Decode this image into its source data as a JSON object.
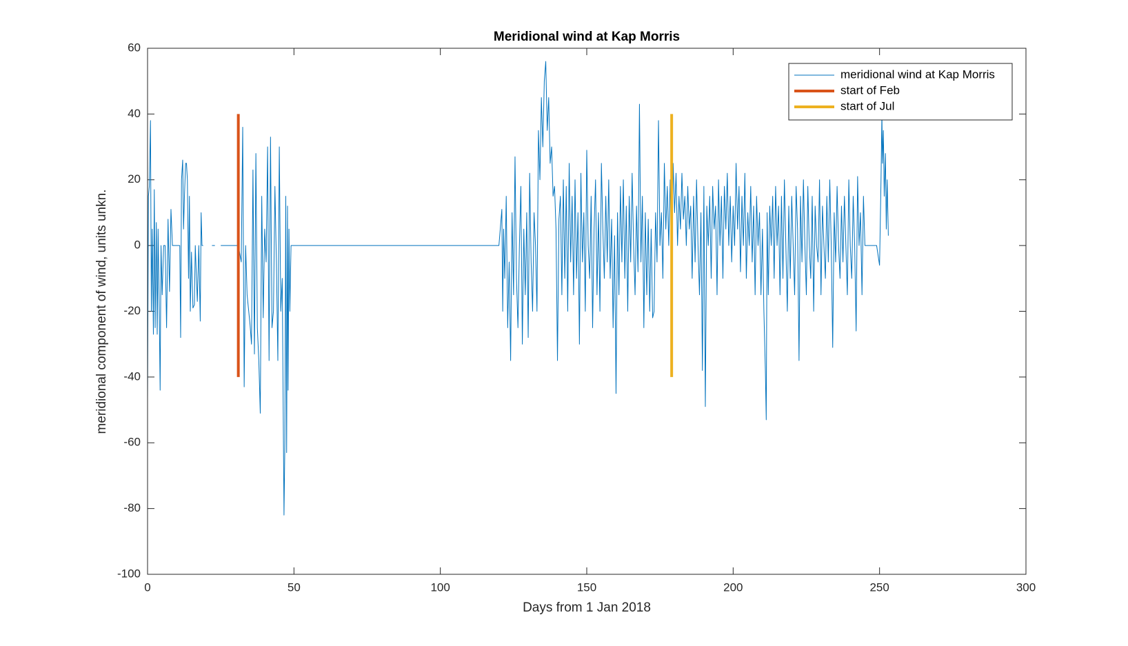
{
  "chart_data": {
    "type": "line",
    "title": "Meridional wind at Kap Morris",
    "xlabel": "Days from 1 Jan 2018",
    "ylabel": "meridional component of wind, units unkn.",
    "xlim": [
      0,
      300
    ],
    "ylim": [
      -100,
      60
    ],
    "xticks": [
      0,
      50,
      100,
      150,
      200,
      250,
      300
    ],
    "yticks": [
      -100,
      -80,
      -60,
      -40,
      -20,
      0,
      20,
      40,
      60
    ],
    "legend": "upper right",
    "grid": false,
    "series": [
      {
        "name": "meridional wind at Kap Morris",
        "color": "#0072bd",
        "linewidth": 1,
        "x": [
          0,
          0.3,
          0.6,
          1,
          1.3,
          1.6,
          2,
          2.3,
          2.6,
          3,
          3.3,
          3.6,
          4,
          4.3,
          4.6,
          5,
          5.5,
          6,
          6.5,
          7,
          7.5,
          8,
          8.5,
          9,
          10,
          11,
          11.3,
          11.6,
          12,
          12.3,
          12.6,
          13,
          13.3,
          13.6,
          14,
          14.3,
          14.6,
          15,
          15.5,
          16,
          16.3,
          17,
          17.5,
          18,
          18.3,
          18.6,
          19,
          20,
          22,
          23,
          24,
          25,
          30,
          31,
          32,
          32.5,
          33,
          33.5,
          34,
          35,
          35.5,
          36,
          36.5,
          37,
          37.5,
          38,
          38.5,
          39,
          39.5,
          40,
          40.5,
          41,
          41.5,
          42,
          42.5,
          43,
          43.5,
          44,
          44.5,
          45,
          45.5,
          46,
          46.3,
          46.6,
          46.9,
          47.2,
          47.5,
          47.8,
          48,
          48.3,
          48.6,
          49,
          60,
          80,
          100,
          120,
          121,
          121.3,
          121.6,
          122,
          122.5,
          123,
          123.5,
          124,
          124.5,
          125,
          125.5,
          126,
          126.5,
          127,
          127.5,
          128,
          128.5,
          129,
          129.5,
          130,
          130.5,
          131,
          131.5,
          132,
          132.5,
          133,
          133.5,
          134,
          134.5,
          135,
          135.5,
          136,
          136.5,
          137,
          137.5,
          138,
          138.5,
          139,
          139.5,
          140,
          140.5,
          141,
          141.5,
          142,
          142.5,
          143,
          143.5,
          144,
          144.5,
          145,
          145.5,
          146,
          146.5,
          147,
          147.5,
          148,
          148.5,
          149,
          149.5,
          150,
          150.5,
          151,
          151.5,
          152,
          152.5,
          153,
          153.5,
          154,
          154.5,
          155,
          155.5,
          156,
          156.5,
          157,
          157.5,
          158,
          158.5,
          159,
          159.5,
          160,
          160.5,
          161,
          161.5,
          162,
          162.5,
          163,
          163.5,
          164,
          164.5,
          165,
          165.5,
          166,
          166.5,
          167,
          167.5,
          168,
          168.5,
          169,
          169.5,
          170,
          170.5,
          171,
          171.5,
          172,
          172.5,
          173,
          173.5,
          174,
          174.5,
          175,
          175.5,
          176,
          176.5,
          177,
          177.5,
          178,
          178.5,
          179,
          179.5,
          180,
          180.5,
          181,
          181.5,
          182,
          182.5,
          183,
          183.5,
          184,
          184.5,
          185,
          185.5,
          186,
          186.5,
          187,
          187.5,
          188,
          188.5,
          189,
          189.5,
          190,
          190.5,
          191,
          191.5,
          192,
          192.5,
          193,
          193.5,
          194,
          194.5,
          195,
          195.5,
          196,
          196.5,
          197,
          197.5,
          198,
          198.5,
          199,
          199.5,
          200,
          200.5,
          201,
          201.5,
          202,
          202.5,
          203,
          203.5,
          204,
          204.5,
          205,
          205.5,
          206,
          206.5,
          207,
          207.5,
          208,
          208.5,
          209,
          209.5,
          210,
          210.5,
          211,
          211.3,
          211.6,
          212,
          212.5,
          213,
          213.5,
          214,
          214.5,
          215,
          215.5,
          216,
          216.5,
          217,
          217.5,
          218,
          218.5,
          219,
          219.5,
          220,
          220.5,
          221,
          221.5,
          222,
          222.5,
          223,
          223.5,
          224,
          224.5,
          225,
          225.5,
          226,
          226.5,
          227,
          227.5,
          228,
          228.5,
          229,
          229.5,
          230,
          230.5,
          231,
          231.5,
          232,
          232.5,
          233,
          233.5,
          234,
          234.5,
          235,
          235.5,
          236,
          236.5,
          237,
          237.5,
          238,
          238.5,
          239,
          239.5,
          240,
          240.5,
          241,
          241.5,
          242,
          242.5,
          243,
          243.5,
          244,
          244.5,
          245,
          249,
          250,
          250.5,
          250.8,
          251,
          251.3,
          251.6,
          252,
          252.3,
          252.6,
          253
        ],
        "values": [
          -47,
          15,
          18,
          38,
          -20,
          5,
          -27,
          17,
          -25,
          7,
          -27,
          5,
          -20,
          -44,
          0,
          -15,
          0,
          0,
          -25,
          8,
          -14,
          11,
          0,
          0,
          0,
          0,
          -28,
          20,
          26,
          5,
          15,
          25,
          25,
          20,
          -10,
          15,
          -20,
          -2,
          -19,
          -18,
          0,
          -17,
          0,
          -23,
          10,
          0,
          0,
          null,
          0,
          0,
          null,
          0,
          0,
          0,
          -5,
          36,
          -43,
          0,
          -15,
          -24,
          -30,
          23,
          -33,
          28,
          -25,
          -35,
          -51,
          15,
          -22,
          5,
          -5,
          30,
          -35,
          33,
          -25,
          -20,
          18,
          -5,
          -35,
          30,
          -20,
          -10,
          -46,
          -82,
          -60,
          15,
          -63,
          12,
          -44,
          5,
          -20,
          0,
          0,
          0,
          0,
          0,
          11,
          -20,
          5,
          -10,
          15,
          -25,
          -5,
          -35,
          10,
          -15,
          27,
          -10,
          -25,
          0,
          18,
          -30,
          5,
          -15,
          10,
          -28,
          22,
          -5,
          -20,
          10,
          0,
          -20,
          35,
          20,
          45,
          30,
          50,
          56,
          35,
          45,
          25,
          30,
          15,
          18,
          5,
          -35,
          8,
          15,
          -15,
          20,
          -10,
          18,
          -20,
          25,
          -5,
          15,
          -15,
          20,
          -10,
          10,
          -30,
          22,
          -5,
          10,
          -20,
          29,
          0,
          -10,
          15,
          -25,
          5,
          20,
          -15,
          10,
          -20,
          25,
          5,
          -10,
          15,
          -5,
          20,
          -10,
          8,
          -25,
          3,
          -45,
          10,
          -15,
          18,
          -5,
          20,
          -10,
          12,
          -20,
          15,
          -5,
          22,
          0,
          -15,
          12,
          -8,
          43,
          -5,
          15,
          -25,
          10,
          -15,
          8,
          -20,
          5,
          -22,
          -20,
          10,
          -5,
          38,
          0,
          10,
          -10,
          25,
          5,
          18,
          0,
          20,
          -2,
          25,
          10,
          22,
          0,
          15,
          5,
          22,
          8,
          15,
          0,
          18,
          5,
          12,
          -10,
          15,
          -5,
          20,
          0,
          -15,
          10,
          -38,
          18,
          -49,
          12,
          0,
          15,
          -10,
          18,
          5,
          12,
          -15,
          20,
          0,
          15,
          -10,
          18,
          5,
          22,
          0,
          15,
          -5,
          12,
          0,
          25,
          5,
          18,
          -8,
          15,
          0,
          22,
          -10,
          10,
          0,
          18,
          -5,
          12,
          -15,
          15,
          0,
          10,
          -15,
          5,
          -20,
          -38,
          -53,
          10,
          -15,
          12,
          0,
          15,
          -10,
          18,
          0,
          12,
          -15,
          15,
          -10,
          20,
          0,
          -20,
          12,
          -10,
          15,
          0,
          -15,
          18,
          5,
          -35,
          15,
          -5,
          20,
          0,
          -15,
          18,
          0,
          -10,
          15,
          -20,
          12,
          0,
          -5,
          20,
          -15,
          12,
          0,
          -10,
          15,
          -5,
          20,
          0,
          -31,
          10,
          -5,
          18,
          0,
          -10,
          12,
          -5,
          15,
          0,
          -15,
          20,
          0,
          -10,
          15,
          0,
          -26,
          21,
          0,
          10,
          -15,
          15,
          0,
          0,
          -6,
          20,
          40,
          25,
          35,
          15,
          28,
          5,
          20,
          3
        ]
      },
      {
        "name": "start of Feb",
        "color": "#d95319",
        "linewidth": 4,
        "x": [
          31,
          31
        ],
        "values": [
          -40,
          40
        ]
      },
      {
        "name": "start of Jul",
        "color": "#edb120",
        "linewidth": 4,
        "x": [
          179,
          179
        ],
        "values": [
          -40,
          40
        ]
      }
    ]
  }
}
